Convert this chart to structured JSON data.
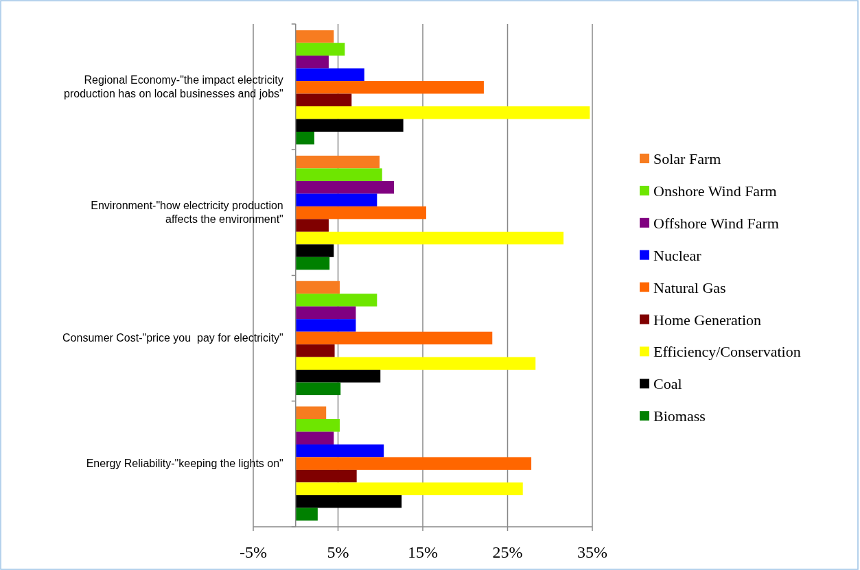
{
  "chart_data": {
    "type": "bar",
    "orientation": "horizontal",
    "categories": [
      "Regional Economy-\"the impact electricity production has on local businesses and jobs\"",
      "Environment-\"how electricity production affects the environment\"",
      "Consumer Cost-\"price you  pay for electricity\"",
      "Energy Reliability-\"keeping the lights on\""
    ],
    "series": [
      {
        "name": "Solar Farm",
        "color": "#f77c20",
        "values": [
          4.5,
          9.9,
          5.2,
          3.6
        ]
      },
      {
        "name": "Onshore Wind Farm",
        "color": "#6ee600",
        "values": [
          5.8,
          10.2,
          9.6,
          5.2
        ]
      },
      {
        "name": "Offshore Wind Farm",
        "color": "#800080",
        "values": [
          3.9,
          11.6,
          7.1,
          4.5
        ]
      },
      {
        "name": "Nuclear",
        "color": "#0000ff",
        "values": [
          8.1,
          9.6,
          7.1,
          10.4
        ]
      },
      {
        "name": "Natural Gas",
        "color": "#ff6600",
        "values": [
          22.2,
          15.4,
          23.2,
          27.8
        ]
      },
      {
        "name": "Home Generation",
        "color": "#800000",
        "values": [
          6.6,
          3.9,
          4.6,
          7.2
        ]
      },
      {
        "name": "Efficiency/Conservation",
        "color": "#ffff00",
        "values": [
          34.7,
          31.6,
          28.3,
          26.8
        ]
      },
      {
        "name": "Coal",
        "color": "#000000",
        "values": [
          12.7,
          4.5,
          10.0,
          12.5
        ]
      },
      {
        "name": "Biomass",
        "color": "#008000",
        "values": [
          2.2,
          4.0,
          5.3,
          2.6
        ]
      }
    ],
    "xlim": [
      -5,
      35
    ],
    "xticks": [
      {
        "value": -5,
        "label": "-5%"
      },
      {
        "value": 5,
        "label": "5%"
      },
      {
        "value": 15,
        "label": "15%"
      },
      {
        "value": 25,
        "label": "25%"
      },
      {
        "value": 35,
        "label": "35%"
      }
    ],
    "grid": "x",
    "legend": "right"
  }
}
